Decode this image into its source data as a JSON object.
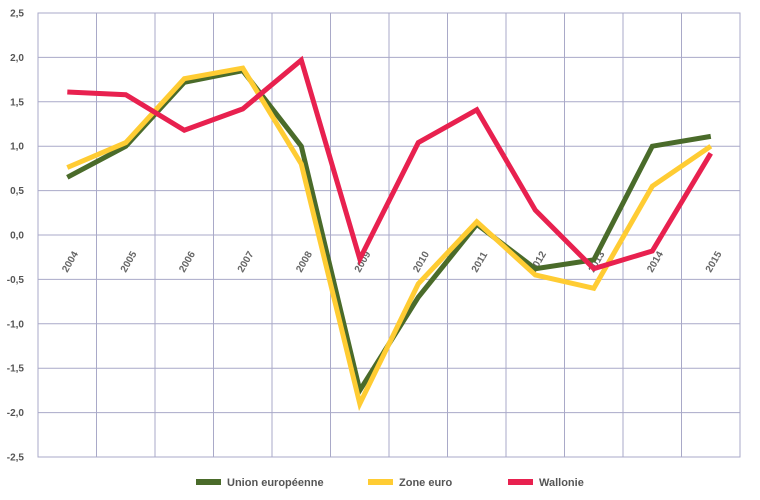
{
  "chart_data": {
    "type": "line",
    "x": [
      "2004",
      "2005",
      "2006",
      "2007",
      "2008",
      "2009",
      "2010",
      "2011",
      "2012",
      "2013",
      "2014",
      "2015"
    ],
    "series": [
      {
        "name": "Union européenne",
        "color": "#4a6b2a",
        "values": [
          0.65,
          1.0,
          1.72,
          1.85,
          1.0,
          -1.75,
          -0.7,
          0.12,
          -0.38,
          -0.28,
          1.0,
          1.11
        ]
      },
      {
        "name": "Zone euro",
        "color": "#ffcc33",
        "values": [
          0.76,
          1.04,
          1.76,
          1.88,
          0.8,
          -1.9,
          -0.55,
          0.15,
          -0.45,
          -0.6,
          0.55,
          1.0
        ]
      },
      {
        "name": "Wallonie",
        "color": "#e8214f",
        "values": [
          1.61,
          1.58,
          1.18,
          1.42,
          1.97,
          -0.27,
          1.04,
          1.41,
          0.28,
          -0.38,
          -0.18,
          0.92
        ]
      }
    ],
    "ylim": [
      -2.5,
      2.5
    ],
    "yticks": [
      "2,5",
      "2,0",
      "1,5",
      "1,0",
      "0,5",
      "0,0",
      "-0,5",
      "-1,0",
      "-1,5",
      "-2,0",
      "-2,5"
    ],
    "title": "",
    "xlabel": "",
    "ylabel": "",
    "grid": true,
    "legend": "bottom"
  }
}
